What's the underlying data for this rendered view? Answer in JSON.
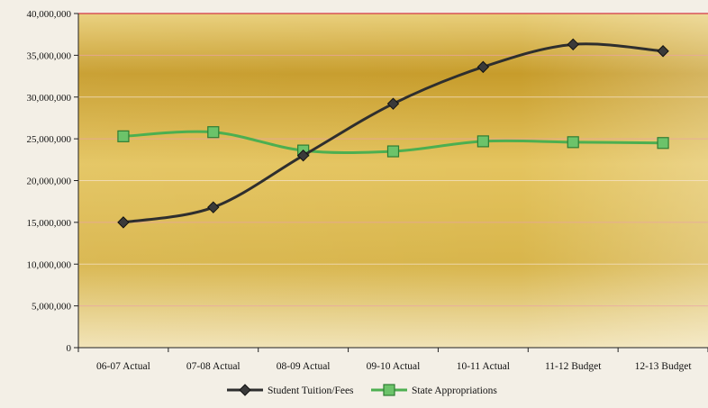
{
  "chart_data": {
    "type": "line",
    "categories": [
      "06-07 Actual",
      "07-08 Actual",
      "08-09 Actual",
      "09-10 Actual",
      "10-11 Actual",
      "11-12 Budget",
      "12-13 Budget"
    ],
    "ylim": [
      0,
      40000000
    ],
    "yticks": [
      "0",
      "5,000,000",
      "10,000,000",
      "15,000,000",
      "20,000,000",
      "25,000,000",
      "30,000,000",
      "35,000,000",
      "40,000,000"
    ],
    "ytick_values": [
      0,
      5000000,
      10000000,
      15000000,
      20000000,
      25000000,
      30000000,
      35000000,
      40000000
    ],
    "grid": true,
    "legend_position": "bottom",
    "series": [
      {
        "name": "Student Tuition/Fees",
        "values": [
          15000000,
          16800000,
          23000000,
          29200000,
          33600000,
          36300000,
          35500000
        ],
        "color": "#2e2e2e",
        "marker": "diamond"
      },
      {
        "name": "State Appropriations",
        "values": [
          25300000,
          25800000,
          23600000,
          23500000,
          24700000,
          24600000,
          24500000
        ],
        "color": "#4caf50",
        "marker": "square"
      }
    ],
    "title": "",
    "xlabel": "",
    "ylabel": ""
  }
}
